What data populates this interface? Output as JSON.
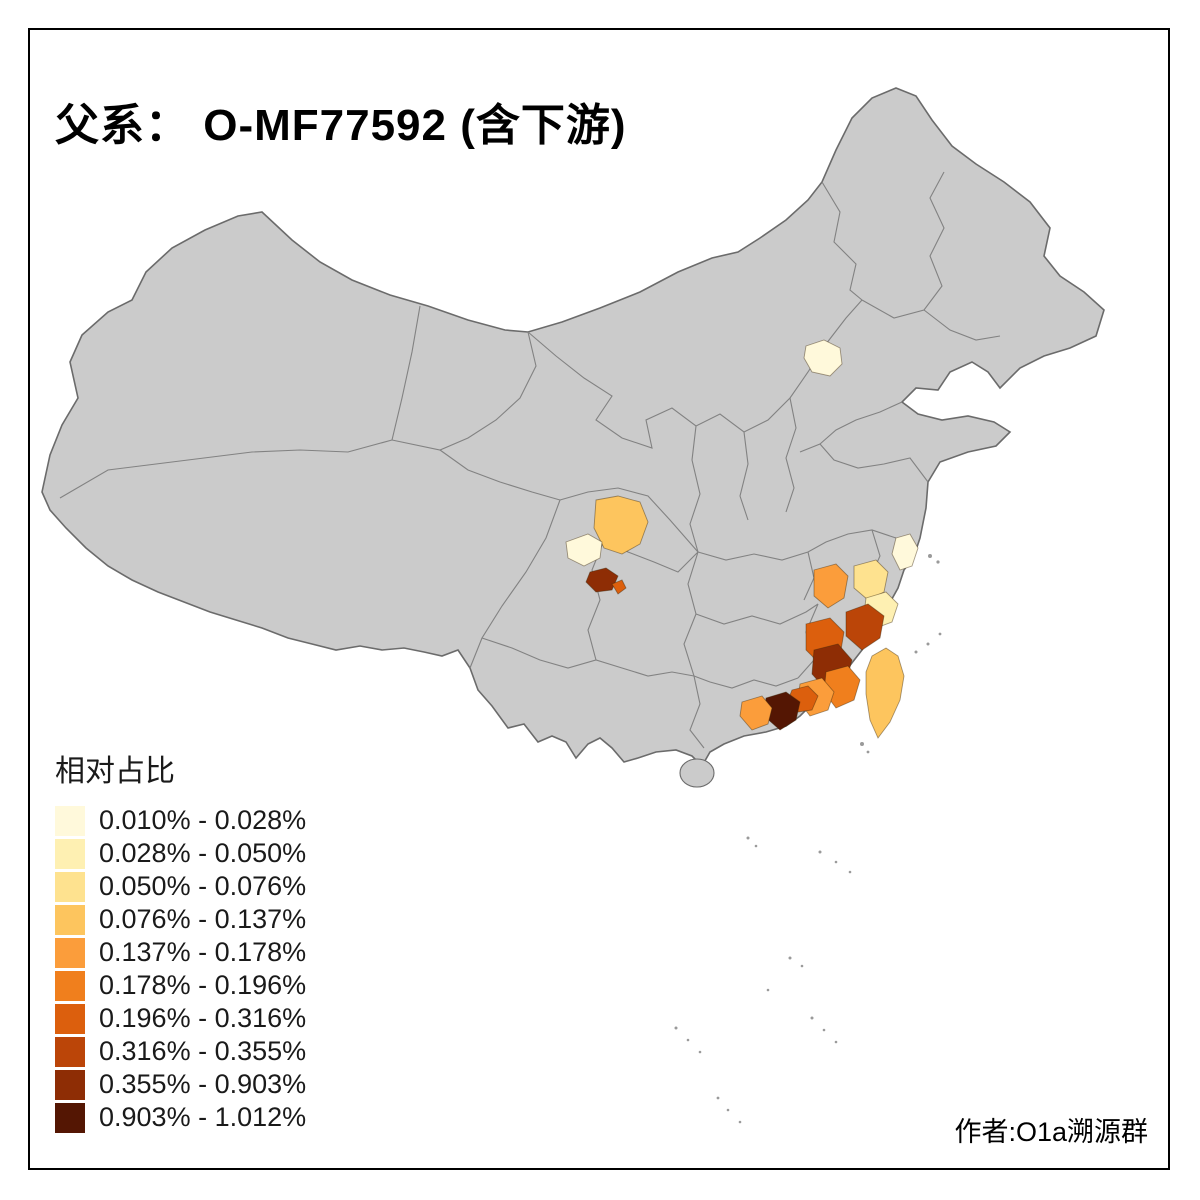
{
  "title": "父系： O-MF77592 (含下游)",
  "author": "作者:O1a溯源群",
  "legend": {
    "title": "相对占比",
    "bins": [
      {
        "range": "0.010% - 0.028%",
        "color": "#FFF9DB"
      },
      {
        "range": "0.028% - 0.050%",
        "color": "#FEF0B2"
      },
      {
        "range": "0.050% - 0.076%",
        "color": "#FEE28F"
      },
      {
        "range": "0.076% - 0.137%",
        "color": "#FDC55E"
      },
      {
        "range": "0.137% - 0.178%",
        "color": "#FB9D3B"
      },
      {
        "range": "0.178% - 0.196%",
        "color": "#F07F1D"
      },
      {
        "range": "0.196% - 0.316%",
        "color": "#DC5F0D"
      },
      {
        "range": "0.316% - 0.355%",
        "color": "#BB4508"
      },
      {
        "range": "0.355% - 0.903%",
        "color": "#8E2D05"
      },
      {
        "range": "0.903% - 1.012%",
        "color": "#541603"
      }
    ]
  },
  "map": {
    "land_color": "#CBCBCB",
    "border_color": "#6B6B6B",
    "background_color": "#FFFFFF",
    "regions": [
      {
        "id": "sichuan-central",
        "bin": 3
      },
      {
        "id": "sichuan-west",
        "bin": 0
      },
      {
        "id": "chongqing-west",
        "bin": 8
      },
      {
        "id": "chongqing-small",
        "bin": 6
      },
      {
        "id": "beijing-area",
        "bin": 0
      },
      {
        "id": "jiangsu-coast",
        "bin": 0
      },
      {
        "id": "zhejiang-west",
        "bin": 4
      },
      {
        "id": "zhejiang-north",
        "bin": 2
      },
      {
        "id": "zhejiang-southeast",
        "bin": 1
      },
      {
        "id": "fujian-northeast",
        "bin": 7
      },
      {
        "id": "fujian-northwest",
        "bin": 6
      },
      {
        "id": "fujian-central",
        "bin": 8
      },
      {
        "id": "fujian-south",
        "bin": 5
      },
      {
        "id": "guangdong-east-coast",
        "bin": 4
      },
      {
        "id": "pearl-river-delta",
        "bin": 9
      },
      {
        "id": "guangdong-west-of-delta",
        "bin": 4
      },
      {
        "id": "guangdong-east-of-delta",
        "bin": 6
      },
      {
        "id": "taiwan",
        "bin": 3
      }
    ]
  }
}
